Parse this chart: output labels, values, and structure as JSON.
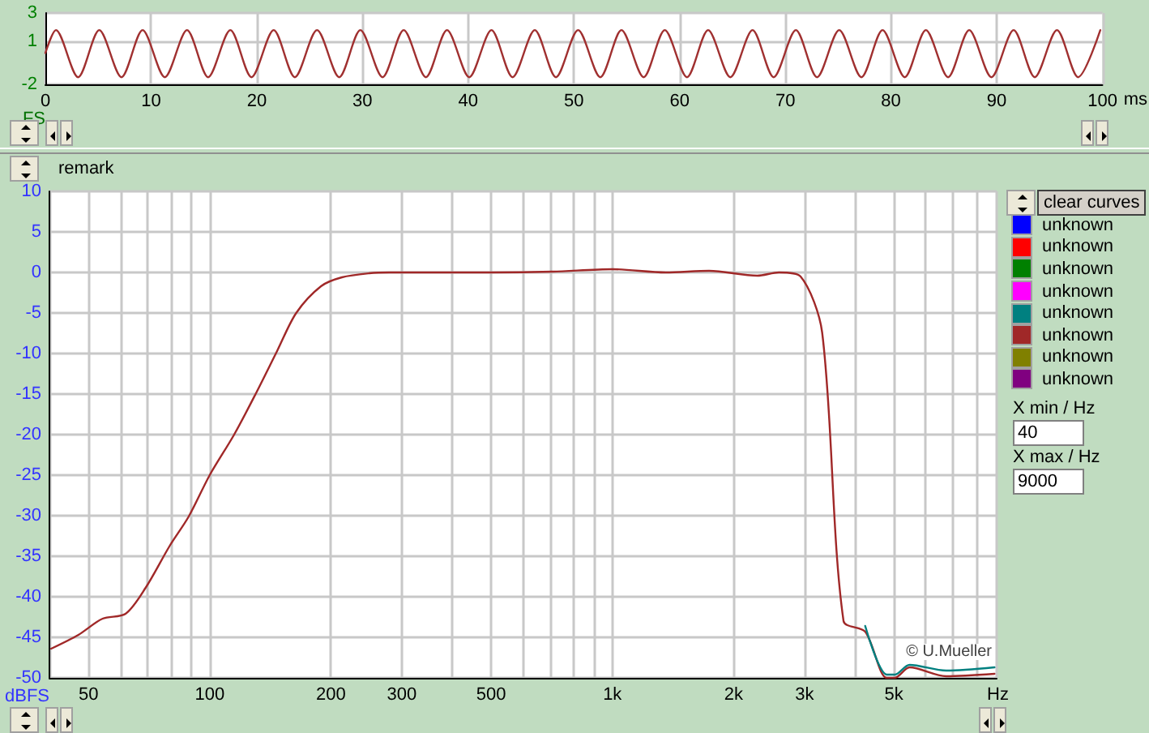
{
  "chart_data": [
    {
      "type": "line",
      "xlabel": "ms",
      "ylabel": "FS",
      "xlim": [
        0,
        100
      ],
      "ylim": [
        -2,
        3
      ],
      "xticks": [
        0,
        10,
        20,
        30,
        40,
        50,
        60,
        70,
        80,
        90,
        100
      ],
      "yticks": [
        -2,
        1,
        3
      ],
      "grid": true,
      "marker": "none",
      "line_style": "solid",
      "series": [
        {
          "color": "#a03030",
          "x": [
            0,
            1.0,
            3.1,
            5.1,
            7.2,
            9.2,
            11.3,
            13.4,
            15.4,
            17.5,
            19.5,
            21.6,
            23.6,
            25.7,
            27.8,
            29.8,
            31.9,
            33.9,
            36.0,
            38.0,
            40.1,
            42.2,
            44.2,
            46.3,
            48.3,
            50.4,
            52.5,
            54.5,
            56.6,
            58.6,
            60.7,
            62.7,
            64.8,
            66.9,
            68.9,
            71.0,
            73.0,
            75.1,
            77.2,
            79.2,
            81.3,
            83.3,
            85.4,
            87.4,
            89.5,
            91.6,
            93.6,
            95.7,
            97.7,
            99.8
          ],
          "values": [
            0.2,
            1.8,
            -1.5,
            1.8,
            -1.5,
            1.8,
            -1.5,
            1.8,
            -1.5,
            1.8,
            -1.5,
            1.8,
            -1.5,
            1.8,
            -1.5,
            1.8,
            -1.5,
            1.8,
            -1.5,
            1.8,
            -1.5,
            1.8,
            -1.5,
            1.8,
            -1.5,
            1.8,
            -1.5,
            1.8,
            -1.5,
            1.8,
            -1.5,
            1.8,
            -1.5,
            1.8,
            -1.5,
            1.8,
            -1.5,
            1.8,
            -1.5,
            1.8,
            -1.5,
            1.8,
            -1.5,
            1.8,
            -1.5,
            1.8,
            -1.5,
            1.8,
            -1.5,
            1.8
          ]
        }
      ]
    },
    {
      "type": "line",
      "xlabel": "Hz",
      "ylabel": "dBFS",
      "log": "x",
      "xlim": [
        40,
        9000
      ],
      "ylim": [
        -50,
        10
      ],
      "xticks": [
        {
          "value": 40,
          "label": null
        },
        50,
        {
          "value": 60,
          "label": null
        },
        {
          "value": 70,
          "label": null
        },
        {
          "value": 80,
          "label": null
        },
        {
          "value": 90,
          "label": null
        },
        100,
        200,
        300,
        {
          "value": 400,
          "label": null
        },
        500,
        {
          "value": 600,
          "label": null
        },
        {
          "value": 700,
          "label": null
        },
        {
          "value": 800,
          "label": null
        },
        {
          "value": 900,
          "label": null
        },
        {
          "value": 1000,
          "label": "1k"
        },
        {
          "value": 2000,
          "label": "2k"
        },
        {
          "value": 3000,
          "label": "3k"
        },
        {
          "value": 4000,
          "label": null
        },
        {
          "value": 5000,
          "label": "5k"
        },
        {
          "value": 6000,
          "label": null
        },
        {
          "value": 7000,
          "label": null
        },
        {
          "value": 8000,
          "label": null
        },
        {
          "value": 9000,
          "label": null
        }
      ],
      "yticks": [
        -50,
        -45,
        -40,
        -35,
        -30,
        -25,
        -20,
        -15,
        -10,
        -5,
        0,
        5,
        10
      ],
      "grid": true,
      "marker": "none",
      "line_style": "solid",
      "legend": "right",
      "annotations": [
        "remark",
        "clear curves",
        "X min / Hz",
        "40",
        "X max / Hz",
        "9000",
        "© U.Mueller"
      ],
      "series": [
        {
          "name": "unknown",
          "color": "#0000ff"
        },
        {
          "name": "unknown",
          "color": "#ff0000"
        },
        {
          "name": "unknown",
          "color": "#008000"
        },
        {
          "name": "unknown",
          "color": "#ff00ff"
        },
        {
          "name": "unknown",
          "color": "#008080",
          "x": [
            4244,
            4801,
            5025,
            5470,
            6743,
            8890
          ],
          "values": [
            -43.6,
            -49.6,
            -49.6,
            -48.4,
            -49.1,
            -48.7
          ]
        },
        {
          "name": "unknown",
          "color": "#a02828",
          "x": [
            40.4,
            47.2,
            54.2,
            61.8,
            69.3,
            79.6,
            88.7,
            100,
            115,
            130,
            147,
            164,
            189,
            213,
            249,
            280,
            500,
            710,
            1000,
            1357,
            1738,
            2290,
            2592,
            2933,
            3318,
            3750,
            4244,
            4801,
            5025,
            5470,
            6743,
            8890
          ],
          "values": [
            -46.4,
            -44.7,
            -42.7,
            -42.1,
            -38.9,
            -33.7,
            -30.1,
            -25,
            -20,
            -15,
            -9.7,
            -5,
            -1.7,
            -0.6,
            -0.1,
            0,
            0,
            0.1,
            0.4,
            0,
            0.2,
            -0.4,
            0,
            -0.5,
            -7.4,
            -43,
            -44.3,
            -50,
            -50,
            -48.7,
            -49.8,
            -49.5
          ]
        },
        {
          "name": "unknown",
          "color": "#808000"
        },
        {
          "name": "unknown",
          "color": "#800080"
        }
      ]
    }
  ]
}
